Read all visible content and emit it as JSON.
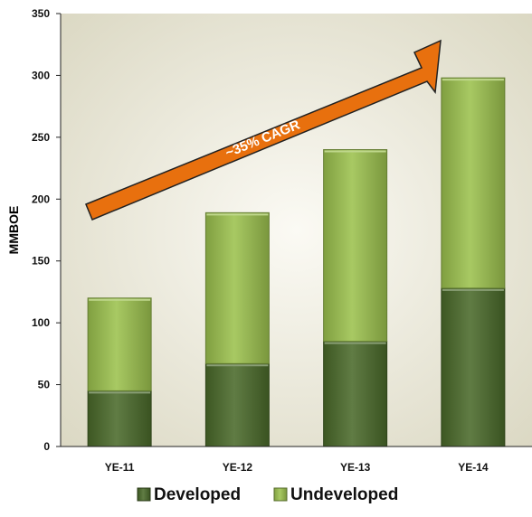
{
  "chart_data": {
    "type": "bar",
    "stacked": true,
    "categories": [
      "YE-11",
      "YE-12",
      "YE-13",
      "YE-14"
    ],
    "series": [
      {
        "name": "Developed",
        "values": [
          45,
          67,
          85,
          128
        ],
        "color": "#4a6a2a"
      },
      {
        "name": "Undeveloped",
        "values": [
          75,
          122,
          155,
          170
        ],
        "color": "#9cc24e"
      }
    ],
    "title": "",
    "xlabel": "",
    "ylabel": "MMBOE",
    "ylim": [
      0,
      350
    ],
    "yticks": [
      0,
      50,
      100,
      150,
      200,
      250,
      300,
      350
    ],
    "grid": false,
    "legend_position": "bottom",
    "annotation": {
      "text": "~35% CAGR",
      "color": "#e8700e"
    },
    "plot_background": "#eeecdf"
  }
}
